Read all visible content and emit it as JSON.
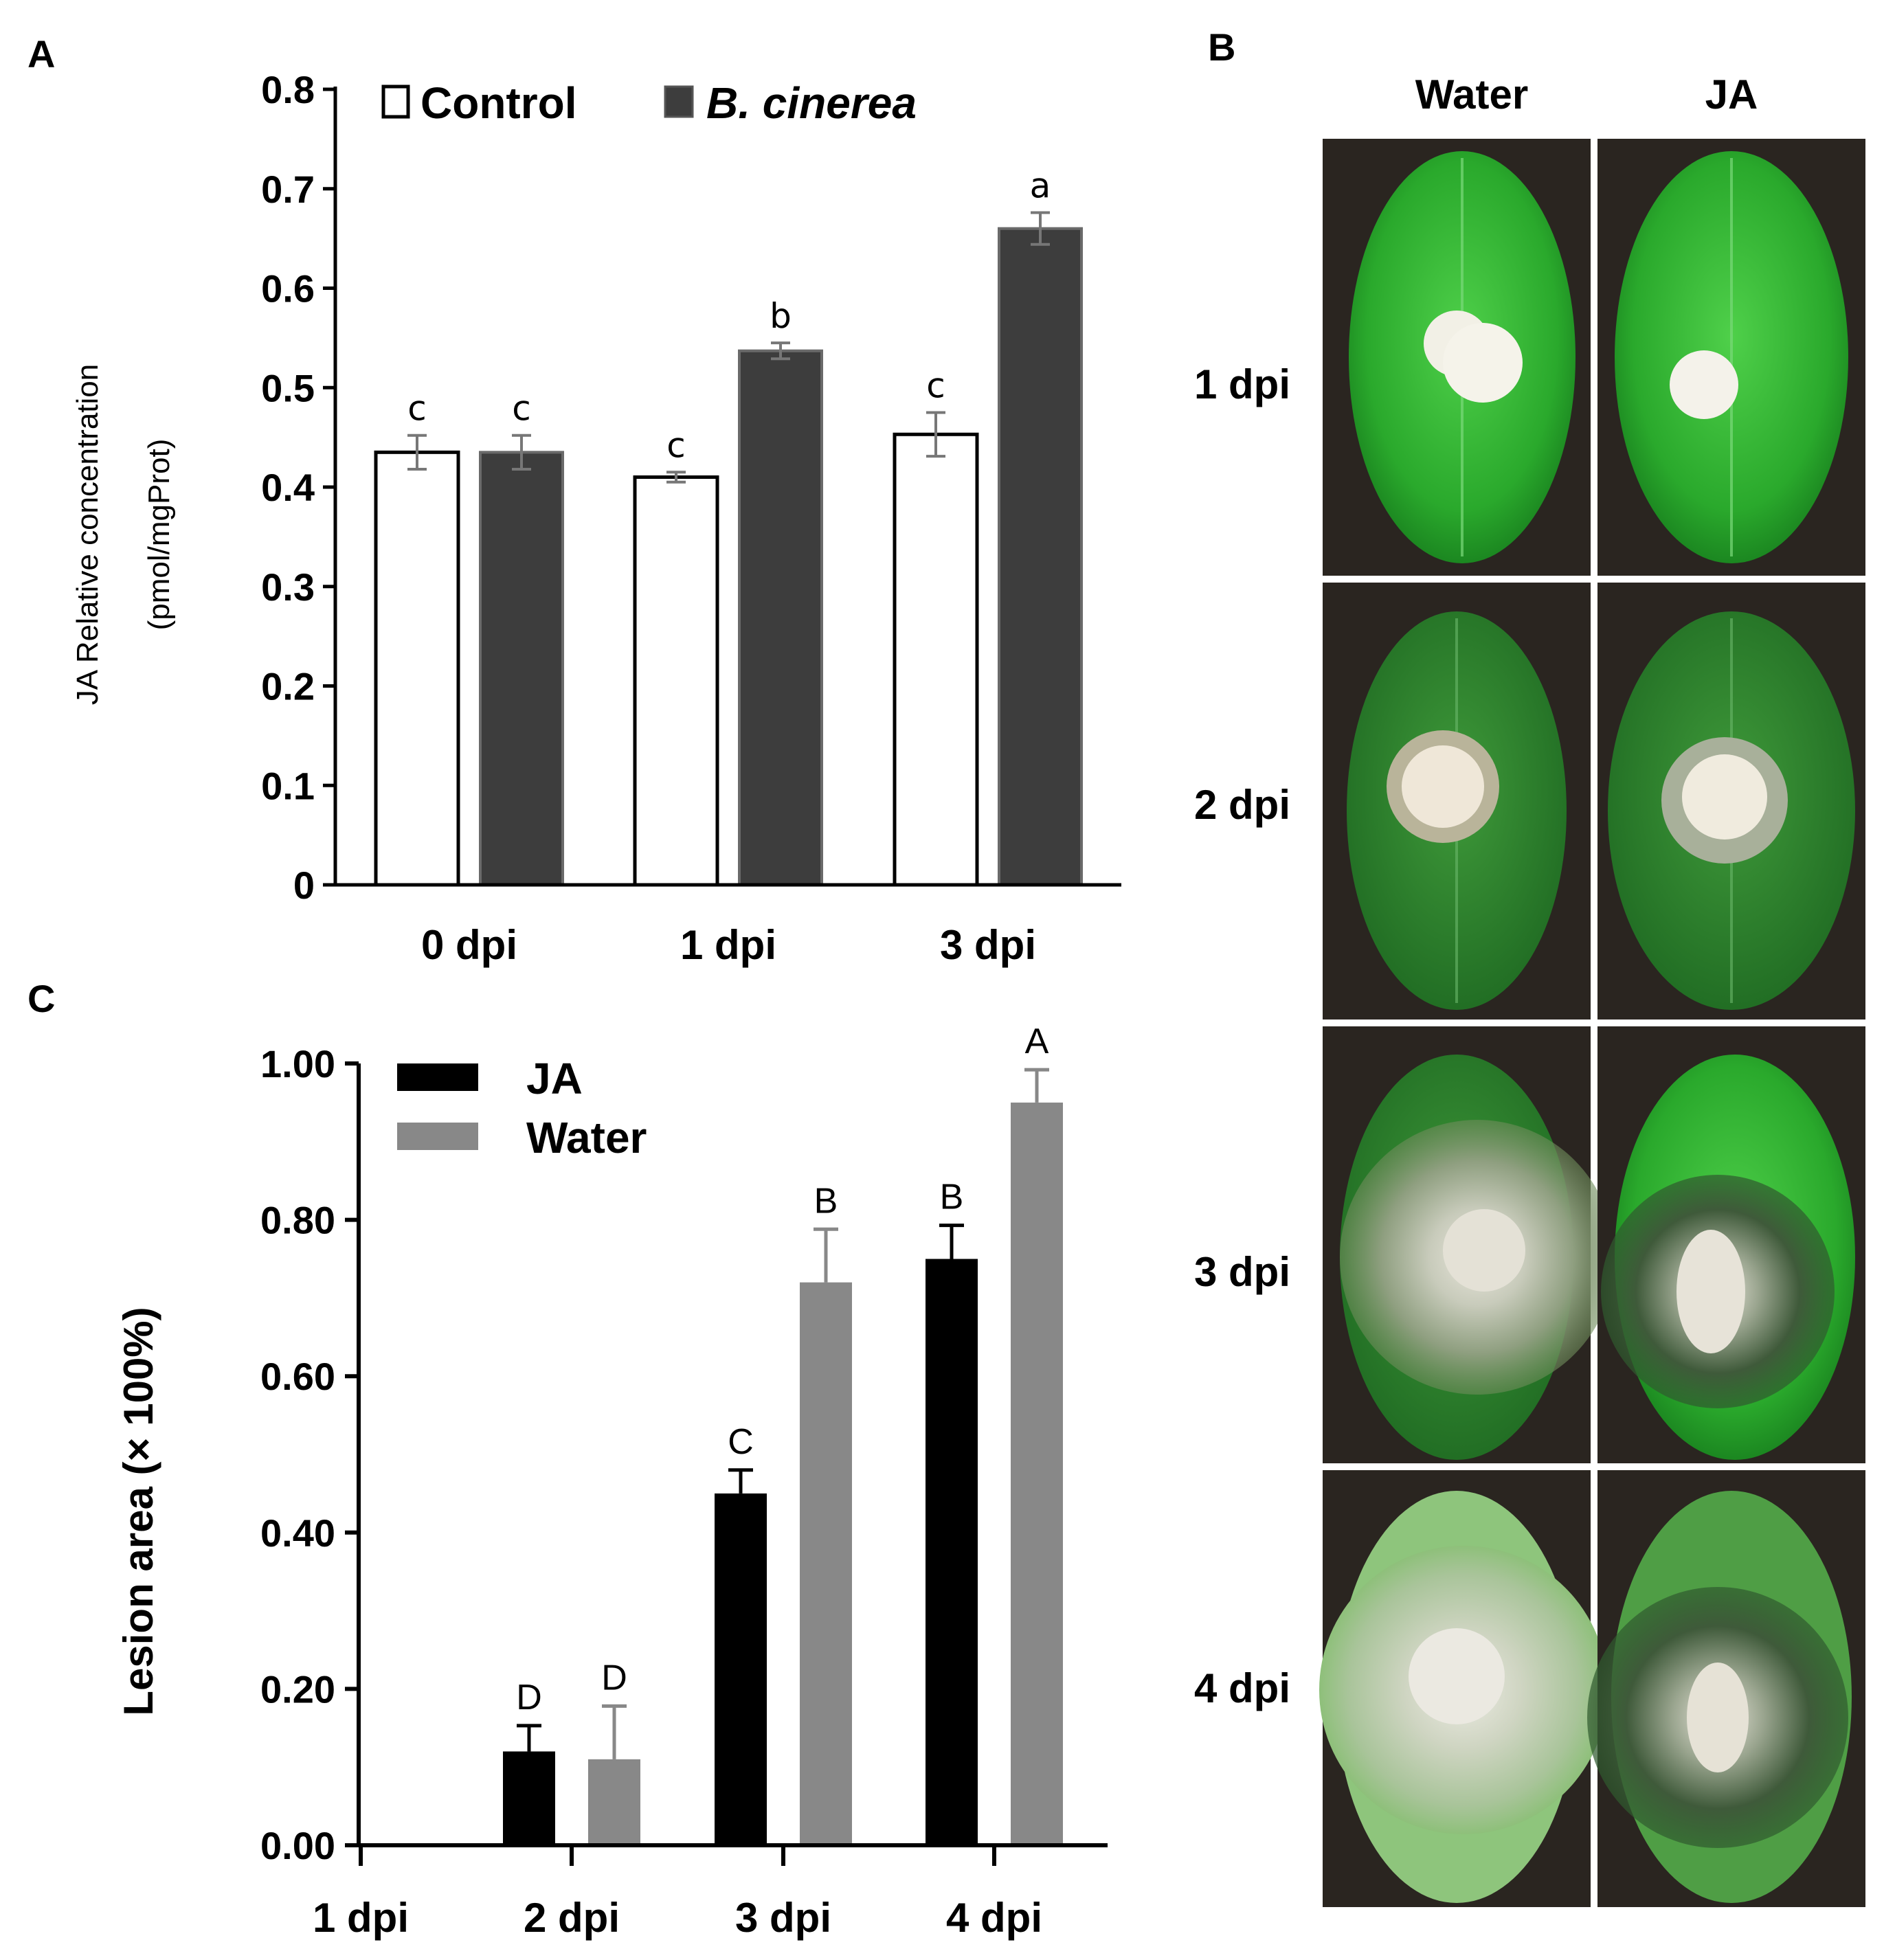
{
  "panels": {
    "a": "A",
    "b": "B",
    "c": "C"
  },
  "chart_data": [
    {
      "id": "A",
      "type": "bar",
      "categories": [
        "0 dpi",
        "1 dpi",
        "3 dpi"
      ],
      "ylabel_line1": "JA Relative concentration",
      "ylabel_line2": "(pmol/mgProt)",
      "ylim": [
        0,
        0.8
      ],
      "yticks": [
        "0",
        "0.1",
        "0.2",
        "0.3",
        "0.4",
        "0.5",
        "0.6",
        "0.7",
        "0.8"
      ],
      "ytick_values": [
        0,
        0.1,
        0.2,
        0.3,
        0.4,
        0.5,
        0.6,
        0.7,
        0.8
      ],
      "legend_position": "top",
      "series": [
        {
          "name": "Control",
          "color": "#ffffff",
          "values": [
            0.435,
            0.41,
            0.453
          ],
          "errors": [
            0.017,
            0.005,
            0.022
          ],
          "labels": [
            "c",
            "c",
            "c"
          ]
        },
        {
          "name": "B. cinerea",
          "color": "#3d3d3d",
          "values": [
            0.435,
            0.537,
            0.66
          ],
          "errors": [
            0.017,
            0.008,
            0.016
          ],
          "labels": [
            "c",
            "b",
            "a"
          ]
        }
      ]
    },
    {
      "id": "C",
      "type": "bar",
      "categories": [
        "1 dpi",
        "2 dpi",
        "3 dpi",
        "4 dpi"
      ],
      "ylabel": "Lesion area (× 100%)",
      "ylim": [
        0,
        1.0
      ],
      "yticks": [
        "0.00",
        "0.20",
        "0.40",
        "0.60",
        "0.80",
        "1.00"
      ],
      "ytick_values": [
        0,
        0.2,
        0.4,
        0.6,
        0.8,
        1.0
      ],
      "legend_position": "top-left",
      "series": [
        {
          "name": "JA",
          "color": "#000000",
          "values": [
            null,
            0.12,
            0.45,
            0.75
          ],
          "errors": [
            null,
            0.033,
            0.03,
            0.043
          ],
          "labels": [
            "",
            "D",
            "C",
            "B"
          ]
        },
        {
          "name": "Water",
          "color": "#888888",
          "values": [
            null,
            0.11,
            0.72,
            0.95
          ],
          "errors": [
            null,
            0.068,
            0.068,
            0.042
          ],
          "labels": [
            "",
            "D",
            "B",
            "A"
          ]
        }
      ]
    }
  ],
  "photos": {
    "columns": [
      "Water",
      "JA"
    ],
    "rows": [
      "1 dpi",
      "2 dpi",
      "3 dpi",
      "4 dpi"
    ]
  }
}
